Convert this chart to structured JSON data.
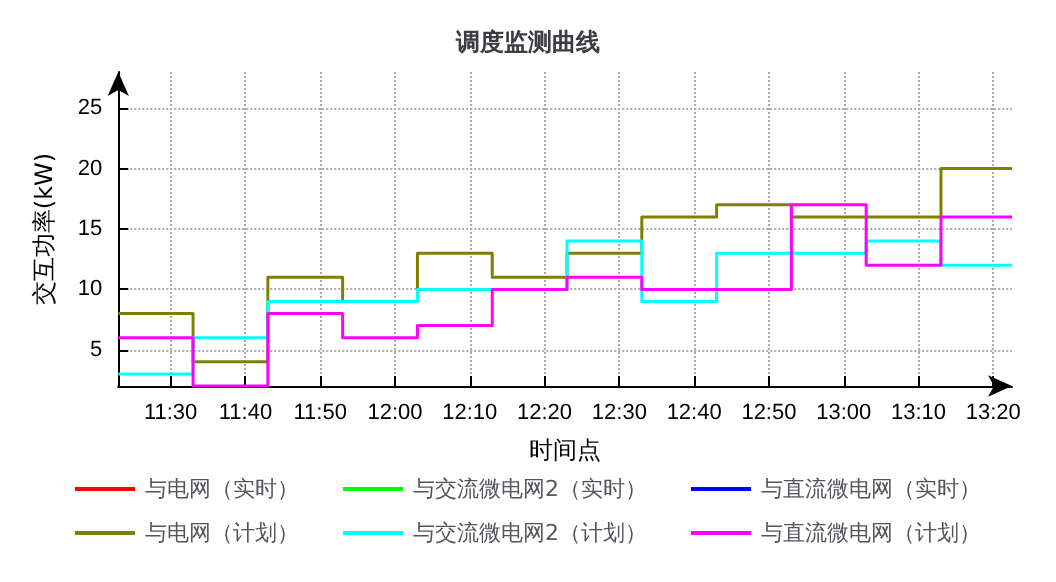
{
  "chart_data": {
    "type": "step",
    "title": "调度监测曲线",
    "xlabel": "时间点",
    "ylabel": "交互功率(kW)",
    "x": [
      11.3833,
      11.55,
      11.7167,
      11.8833,
      12.05,
      12.2167,
      12.3833,
      12.55,
      12.7167,
      12.8833,
      13.05,
      13.2167,
      13.375
    ],
    "series": [
      {
        "name": "与电网（实时）",
        "color": "#ff0000",
        "values": [
          null,
          null,
          null,
          null,
          null,
          null,
          null,
          null,
          null,
          null,
          null,
          null,
          null
        ]
      },
      {
        "name": "与交流微电网2（实时）",
        "color": "#00ff00",
        "values": [
          null,
          null,
          null,
          null,
          null,
          null,
          null,
          null,
          null,
          null,
          null,
          null,
          null
        ]
      },
      {
        "name": "与直流微电网（实时）",
        "color": "#0000ff",
        "values": [
          null,
          null,
          null,
          null,
          null,
          null,
          null,
          null,
          null,
          null,
          null,
          null,
          null
        ]
      },
      {
        "name": "与电网（计划）",
        "color": "#808000",
        "values": [
          8,
          4,
          11,
          9,
          13,
          11,
          13,
          16,
          17,
          16,
          16,
          20,
          20
        ]
      },
      {
        "name": "与交流微电网2（计划）",
        "color": "#00ffff",
        "values": [
          3,
          6,
          9,
          9,
          10,
          10,
          14,
          9,
          13,
          13,
          14,
          12,
          12
        ]
      },
      {
        "name": "与直流微电网（计划）",
        "color": "#ff00ff",
        "values": [
          6,
          2,
          8,
          6,
          7,
          10,
          11,
          10,
          10,
          17,
          12,
          16,
          16
        ]
      }
    ],
    "xlim": [
      11.3833,
      13.375
    ],
    "xticks": [
      {
        "value": 11.5,
        "label": "11:30"
      },
      {
        "value": 11.6667,
        "label": "11:40"
      },
      {
        "value": 11.8333,
        "label": "11:50"
      },
      {
        "value": 12,
        "label": "12:00"
      },
      {
        "value": 12.1667,
        "label": "12:10"
      },
      {
        "value": 12.3333,
        "label": "12:20"
      },
      {
        "value": 12.5,
        "label": "12:30"
      },
      {
        "value": 12.6667,
        "label": "12:40"
      },
      {
        "value": 12.8333,
        "label": "12:50"
      },
      {
        "value": 13,
        "label": "13:00"
      },
      {
        "value": 13.1667,
        "label": "13:10"
      },
      {
        "value": 13.3333,
        "label": "13:20"
      }
    ],
    "ylim": [
      2,
      28
    ],
    "yticks": [
      5,
      10,
      15,
      20,
      25
    ],
    "grid": true,
    "legend": "bottom",
    "marker": "none",
    "line_style": "solid"
  }
}
